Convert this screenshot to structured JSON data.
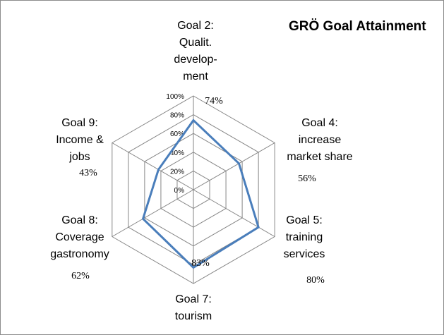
{
  "chart_data": {
    "type": "radar",
    "title": "GRÖ Goal Attainment",
    "rmax": 100,
    "grid": true,
    "ticks": [
      "0%",
      "20%",
      "40%",
      "60%",
      "80%",
      "100%"
    ],
    "categories": [
      [
        "Goal 2:",
        "Qualit.",
        "develop-",
        "ment"
      ],
      [
        "Goal 4:",
        "increase",
        "market share"
      ],
      [
        "Goal 5:",
        "training",
        "services"
      ],
      [
        "Goal 7:",
        "tourism"
      ],
      [
        "Goal 8:",
        "Coverage",
        "gastronomy"
      ],
      [
        "Goal 9:",
        "Income &",
        "jobs"
      ]
    ],
    "values": [
      74,
      56,
      80,
      83,
      62,
      43
    ],
    "value_labels": [
      "74%",
      "56%",
      "80%",
      "83%",
      "62%",
      "43%"
    ],
    "colors": {
      "series": "#4a7ebb",
      "grid": "#868686"
    }
  }
}
